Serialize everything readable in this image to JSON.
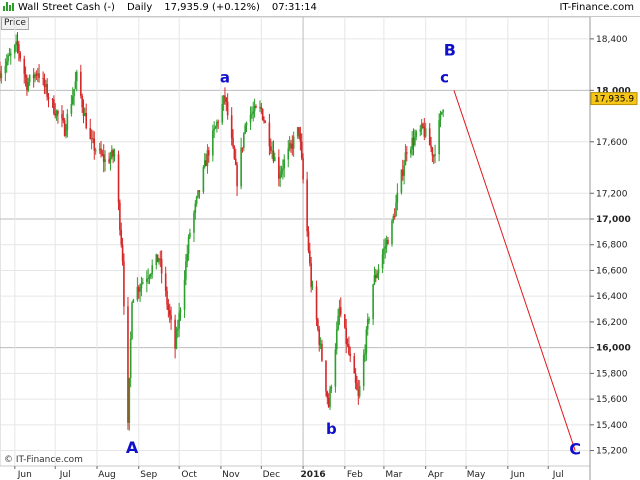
{
  "header": {
    "instrument": "Wall Street Cash (-)",
    "period": "Daily",
    "last": "17,935.9 (+0.12%)",
    "time": "07:31:14",
    "site": "IT-Finance.com"
  },
  "price_badge": "Price",
  "watermark": "© IT-Finance.com",
  "colors": {
    "up": "#2ca02c",
    "down": "#d62728",
    "projection": "#e0191e",
    "wave_label": "#1010cc",
    "grid": "#e6e6e6",
    "last_price_box": "#f5c518"
  },
  "chart_data": {
    "type": "candlestick",
    "y_ticks": [
      "18,400",
      "18,000",
      "17,600",
      "17,200",
      "17,000",
      "16,800",
      "16,600",
      "16,400",
      "16,200",
      "16,000",
      "15,800",
      "15,600",
      "15,400",
      "15,200"
    ],
    "y_tick_values": [
      18400,
      18000,
      17600,
      17200,
      17000,
      16800,
      16600,
      16400,
      16200,
      16000,
      15800,
      15600,
      15400,
      15200
    ],
    "ylim": [
      15080,
      18570
    ],
    "x_ticks": [
      "Jun",
      "Jul",
      "Aug",
      "Sep",
      "Oct",
      "Nov",
      "Dec",
      "2016",
      "Feb",
      "Mar",
      "Apr",
      "May",
      "Jun",
      "Jul"
    ],
    "x_tick_months": [
      0,
      1,
      2,
      3,
      4,
      5,
      6,
      7,
      8,
      9,
      10,
      11,
      12,
      13
    ],
    "x_start": "2015-05-21",
    "x_end": "2016-08-01",
    "last_price_label": "17,935.9",
    "last_price": 17935.9,
    "anchors": [
      {
        "date": "2015-05-21",
        "value": 18150
      },
      {
        "date": "2015-05-28",
        "value": 18250
      },
      {
        "date": "2015-06-03",
        "value": 18350
      },
      {
        "date": "2015-06-10",
        "value": 18050
      },
      {
        "date": "2015-06-18",
        "value": 18150
      },
      {
        "date": "2015-06-26",
        "value": 17950
      },
      {
        "date": "2015-07-08",
        "value": 17700
      },
      {
        "date": "2015-07-17",
        "value": 18100
      },
      {
        "date": "2015-07-27",
        "value": 17600
      },
      {
        "date": "2015-08-07",
        "value": 17450
      },
      {
        "date": "2015-08-14",
        "value": 17500
      },
      {
        "date": "2015-08-20",
        "value": 16700
      },
      {
        "date": "2015-08-24",
        "value": 15370
      },
      {
        "date": "2015-08-27",
        "value": 16400
      },
      {
        "date": "2015-09-16",
        "value": 16700
      },
      {
        "date": "2015-09-28",
        "value": 16000
      },
      {
        "date": "2015-10-09",
        "value": 16900
      },
      {
        "date": "2015-10-22",
        "value": 17500
      },
      {
        "date": "2015-11-04",
        "value": 17950
      },
      {
        "date": "2015-11-13",
        "value": 17300
      },
      {
        "date": "2015-11-20",
        "value": 17800
      },
      {
        "date": "2015-12-01",
        "value": 17850
      },
      {
        "date": "2015-12-14",
        "value": 17350
      },
      {
        "date": "2015-12-29",
        "value": 17700
      },
      {
        "date": "2016-01-07",
        "value": 16500
      },
      {
        "date": "2016-01-20",
        "value": 15550
      },
      {
        "date": "2016-01-28",
        "value": 16300
      },
      {
        "date": "2016-02-11",
        "value": 15600
      },
      {
        "date": "2016-02-22",
        "value": 16500
      },
      {
        "date": "2016-03-07",
        "value": 16950
      },
      {
        "date": "2016-03-18",
        "value": 17550
      },
      {
        "date": "2016-03-30",
        "value": 17700
      },
      {
        "date": "2016-04-07",
        "value": 17500
      },
      {
        "date": "2016-04-15",
        "value": 17950
      }
    ],
    "projection": {
      "from": {
        "date": "2016-04-22",
        "value": 18000
      },
      "to": {
        "date": "2016-07-21",
        "value": 15200
      }
    },
    "wave_labels": [
      {
        "text": "A",
        "date": "2015-08-27",
        "value": 15180,
        "size": "large"
      },
      {
        "text": "a",
        "date": "2015-11-04",
        "value": 18060,
        "size": "small"
      },
      {
        "text": "b",
        "date": "2016-01-22",
        "value": 15330,
        "size": "small"
      },
      {
        "text": "B",
        "date": "2016-04-19",
        "value": 18270,
        "size": "large"
      },
      {
        "text": "c",
        "date": "2016-04-15",
        "value": 18060,
        "size": "small"
      },
      {
        "text": "C",
        "date": "2016-07-21",
        "value": 15170,
        "size": "large"
      }
    ]
  }
}
